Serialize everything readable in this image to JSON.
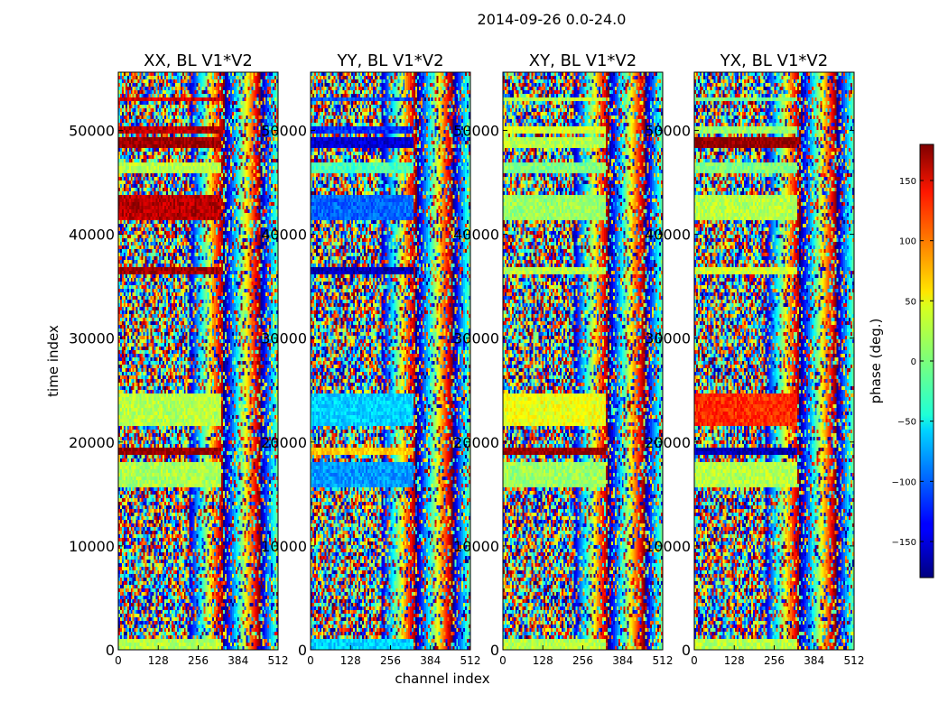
{
  "suptitle": "2014-09-26 0.0-24.0",
  "chart_data": {
    "type": "heatmap",
    "panels": [
      {
        "title": "XX, BL V1*V2",
        "pol": "XX"
      },
      {
        "title": "YY, BL V1*V2",
        "pol": "YY"
      },
      {
        "title": "XY, BL V1*V2",
        "pol": "XY"
      },
      {
        "title": "YX, BL V1*V2",
        "pol": "YX"
      }
    ],
    "xlabel": "channel index",
    "ylabel": "time index",
    "xlim": [
      0,
      512
    ],
    "ylim": [
      0,
      55600
    ],
    "xticks": [
      0,
      128,
      256,
      384,
      512
    ],
    "yticks": [
      0,
      10000,
      20000,
      30000,
      40000,
      50000
    ],
    "colorbar": {
      "label": "phase (deg.)",
      "range": [
        -180,
        180
      ],
      "ticks": [
        150,
        100,
        50,
        0,
        -50,
        -100,
        -150
      ],
      "tick_labels": [
        "150",
        "100",
        "50",
        "0",
        "−50",
        "−100",
        "−150"
      ],
      "colormap": "jet"
    },
    "bands": [
      {
        "y0": 52700,
        "y1": 53300,
        "XX": 150,
        "YY": -110,
        "XY": 20,
        "YX": 0
      },
      {
        "y0": 48300,
        "y1": 49300,
        "XX": 170,
        "YY": -150,
        "XY": 20,
        "YX": 175
      },
      {
        "y0": 49600,
        "y1": 50500,
        "XX": 160,
        "YY": -120,
        "XY": 30,
        "YX": 10
      },
      {
        "y0": 46000,
        "y1": 47000,
        "XX": 20,
        "YY": -20,
        "XY": 0,
        "YX": 0
      },
      {
        "y0": 41500,
        "y1": 43800,
        "XX": 160,
        "YY": -100,
        "XY": 10,
        "YX": 20
      },
      {
        "y0": 36200,
        "y1": 36900,
        "XX": 170,
        "YY": -160,
        "XY": 20,
        "YX": 30
      },
      {
        "y0": 21500,
        "y1": 24500,
        "XX": 20,
        "YY": -60,
        "XY": 40,
        "YX": 120
      },
      {
        "y0": 18600,
        "y1": 19500,
        "XX": 175,
        "YY": 60,
        "XY": 175,
        "YX": -160
      },
      {
        "y0": 15500,
        "y1": 18200,
        "XX": 15,
        "YY": -80,
        "XY": 10,
        "YX": 20
      },
      {
        "y0": 0,
        "y1": 900,
        "XX": 20,
        "YY": -60,
        "XY": 20,
        "YX": 20
      }
    ]
  }
}
